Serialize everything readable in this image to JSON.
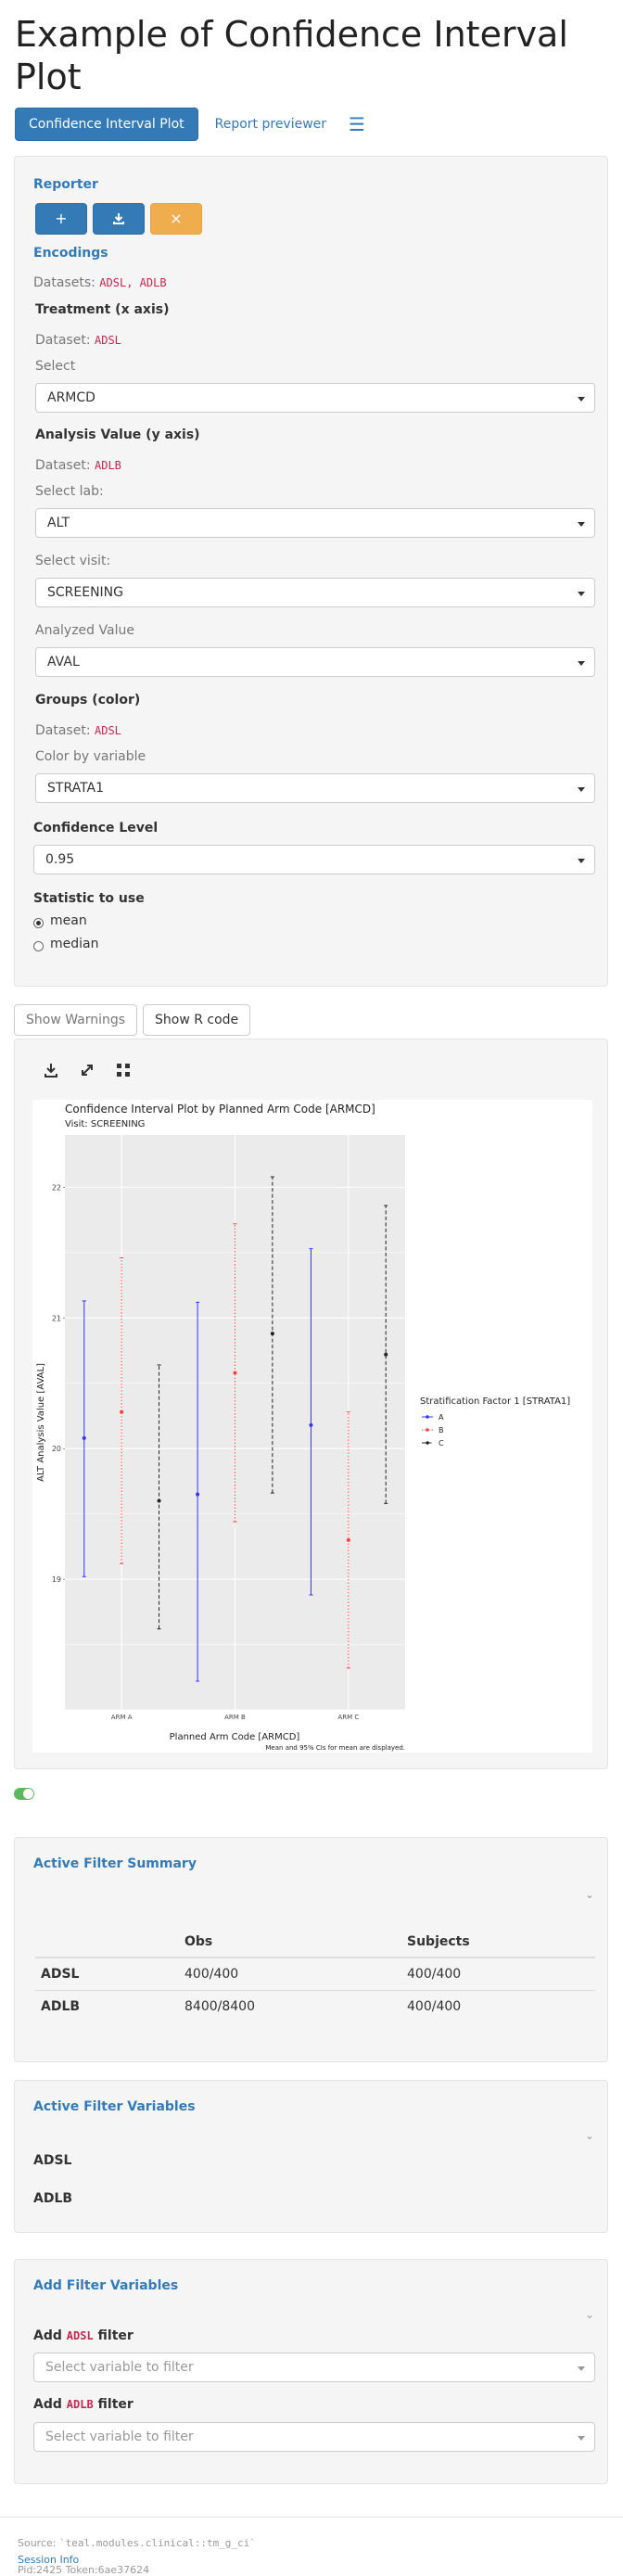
{
  "page": {
    "title": "Example of Confidence Interval Plot"
  },
  "nav": {
    "tabs": [
      "Confidence Interval Plot",
      "Report previewer"
    ]
  },
  "encodings": {
    "reporter_label": "Reporter",
    "reporter_buttons": [
      "+",
      "download",
      "×"
    ],
    "title": "Encodings",
    "datasets_label": "Datasets:",
    "datasets": [
      "ADSL",
      "ADLB"
    ],
    "treatment": {
      "title": "Treatment (x axis)",
      "dataset_label": "Dataset:",
      "dataset": "ADSL",
      "select_label": "Select",
      "value": "ARMCD"
    },
    "analysis": {
      "title": "Analysis Value (y axis)",
      "dataset_label": "Dataset:",
      "dataset": "ADLB",
      "lab_label": "Select lab:",
      "lab_value": "ALT",
      "visit_label": "Select visit:",
      "visit_value": "SCREENING",
      "value_label": "Analyzed Value",
      "value": "AVAL"
    },
    "groups": {
      "title": "Groups (color)",
      "dataset_label": "Dataset:",
      "dataset": "ADSL",
      "color_label": "Color by variable",
      "value": "STRATA1"
    },
    "confidence": {
      "title": "Confidence Level",
      "value": "0.95"
    },
    "statistic": {
      "title": "Statistic to use",
      "options": [
        "mean",
        "median"
      ],
      "selected": "mean"
    }
  },
  "buttons": {
    "warnings": "Show Warnings",
    "rcode": "Show R code"
  },
  "chart_data": {
    "type": "errorbar",
    "title": "Confidence Interval Plot by Planned Arm Code [ARMCD]",
    "subtitle": "Visit: SCREENING",
    "xlabel": "Planned Arm Code [ARMCD]",
    "ylabel": "ALT Analysis Value [AVAL]",
    "caption": "Mean and 95% CIs for mean are displayed.",
    "legend_title": "Stratification Factor 1 [STRATA1]",
    "legend_position": "right",
    "categories": [
      "ARM A",
      "ARM B",
      "ARM C"
    ],
    "ylim": [
      18.0,
      22.4
    ],
    "yticks": [
      19,
      20,
      21,
      22
    ],
    "grid": true,
    "series": [
      {
        "name": "A",
        "color": "#3333ff",
        "linestyle": "solid",
        "mean": [
          20.08,
          19.65,
          20.18
        ],
        "lower": [
          19.02,
          18.22,
          18.88
        ],
        "upper": [
          21.13,
          21.12,
          21.53
        ]
      },
      {
        "name": "B",
        "color": "#ff4040",
        "linestyle": "dotted",
        "mean": [
          20.28,
          20.58,
          19.3
        ],
        "lower": [
          19.12,
          19.44,
          18.32
        ],
        "upper": [
          21.46,
          21.72,
          20.28
        ]
      },
      {
        "name": "C",
        "color": "#222222",
        "linestyle": "dashed",
        "mean": [
          19.6,
          20.88,
          20.72
        ],
        "lower": [
          18.62,
          19.66,
          19.58
        ],
        "upper": [
          20.64,
          22.08,
          21.86
        ]
      }
    ]
  },
  "filters": {
    "summary_title": "Active Filter Summary",
    "headers": [
      "",
      "Obs",
      "Subjects"
    ],
    "rows": [
      {
        "name": "ADSL",
        "obs": "400/400",
        "subjects": "400/400"
      },
      {
        "name": "ADLB",
        "obs": "8400/8400",
        "subjects": "400/400"
      }
    ],
    "variables_title": "Active Filter Variables",
    "variables": [
      "ADSL",
      "ADLB"
    ],
    "add_title": "Add Filter Variables",
    "add_prefix": "Add",
    "add_suffix": "filter",
    "add_datasets": [
      "ADSL",
      "ADLB"
    ],
    "placeholder": "Select variable to filter"
  },
  "footer": {
    "source_prefix": "Source:",
    "source_code": "`teal.modules.clinical::tm_g_ci`",
    "session_info": "Session Info",
    "pid": "Pid:2425 Token:6ae37624"
  }
}
